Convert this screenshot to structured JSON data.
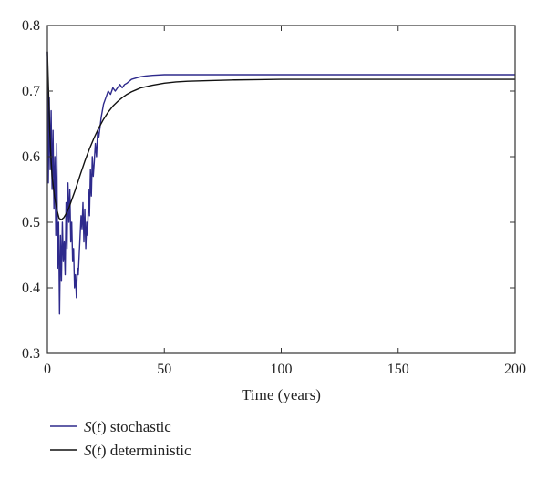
{
  "chart_data": {
    "type": "line",
    "title": "",
    "xlabel": "Time (years)",
    "ylabel": "",
    "xlim": [
      0,
      200
    ],
    "ylim": [
      0.3,
      0.8
    ],
    "xticks": [
      0,
      50,
      100,
      150,
      200
    ],
    "yticks": [
      0.3,
      0.4,
      0.5,
      0.6,
      0.7,
      0.8
    ],
    "xtick_labels": [
      "0",
      "50",
      "100",
      "150",
      "200"
    ],
    "ytick_labels": [
      "0.3",
      "0.4",
      "0.5",
      "0.6",
      "0.7",
      "0.8"
    ],
    "grid": false,
    "legend_position": "bottom-left, below plot",
    "series": [
      {
        "name": "S(t) stochastic",
        "legend_italic": "S",
        "legend_mid": "(",
        "legend_var": "t",
        "legend_rest": ") stochastic",
        "color": "#2e2a8c",
        "x": [
          0,
          0.4,
          0.8,
          1.2,
          1.6,
          2.0,
          2.4,
          2.8,
          3.2,
          3.6,
          4.0,
          4.4,
          4.8,
          5.2,
          5.6,
          6.0,
          6.4,
          6.8,
          7.2,
          7.6,
          8.0,
          8.4,
          8.8,
          9.2,
          9.6,
          10.0,
          10.4,
          10.8,
          11.2,
          11.6,
          12.0,
          12.4,
          12.8,
          13.2,
          13.6,
          14.0,
          14.4,
          14.8,
          15.2,
          15.6,
          16.0,
          16.4,
          16.8,
          17.2,
          17.6,
          18.0,
          18.4,
          18.8,
          19.2,
          19.6,
          20.0,
          20.5,
          21.0,
          21.5,
          22.0,
          23.0,
          24.0,
          25.0,
          26.0,
          27.0,
          28.0,
          29.0,
          30.0,
          31.0,
          32.0,
          33.0,
          34.0,
          35.0,
          36.0,
          38.0,
          40.0,
          42.0,
          45.0,
          50.0,
          60.0,
          80.0,
          100.0,
          150.0,
          200.0
        ],
        "y": [
          0.76,
          0.56,
          0.69,
          0.58,
          0.67,
          0.55,
          0.64,
          0.52,
          0.6,
          0.48,
          0.62,
          0.43,
          0.5,
          0.36,
          0.48,
          0.41,
          0.5,
          0.44,
          0.47,
          0.42,
          0.53,
          0.46,
          0.56,
          0.5,
          0.55,
          0.47,
          0.5,
          0.44,
          0.46,
          0.4,
          0.42,
          0.385,
          0.43,
          0.42,
          0.45,
          0.48,
          0.51,
          0.49,
          0.53,
          0.47,
          0.52,
          0.46,
          0.5,
          0.48,
          0.55,
          0.51,
          0.58,
          0.54,
          0.6,
          0.57,
          0.59,
          0.62,
          0.6,
          0.64,
          0.63,
          0.66,
          0.68,
          0.69,
          0.7,
          0.695,
          0.705,
          0.7,
          0.705,
          0.71,
          0.705,
          0.71,
          0.712,
          0.715,
          0.718,
          0.72,
          0.722,
          0.723,
          0.724,
          0.725,
          0.725,
          0.725,
          0.725,
          0.725,
          0.725
        ]
      },
      {
        "name": "S(t) deterministic",
        "legend_italic": "S",
        "legend_mid": "(",
        "legend_var": "t",
        "legend_rest": ") deterministic",
        "color": "#111111",
        "x": [
          0,
          0.5,
          1,
          1.5,
          2,
          3,
          4,
          5,
          6,
          7,
          8,
          9,
          10,
          12,
          14,
          16,
          18,
          20,
          22,
          24,
          26,
          28,
          30,
          32,
          34,
          36,
          38,
          40,
          45,
          50,
          55,
          60,
          70,
          80,
          90,
          100,
          120,
          150,
          200
        ],
        "y": [
          0.76,
          0.7,
          0.64,
          0.6,
          0.57,
          0.54,
          0.52,
          0.506,
          0.504,
          0.507,
          0.513,
          0.52,
          0.53,
          0.55,
          0.572,
          0.593,
          0.612,
          0.629,
          0.644,
          0.657,
          0.668,
          0.677,
          0.684,
          0.69,
          0.695,
          0.699,
          0.702,
          0.705,
          0.709,
          0.712,
          0.714,
          0.715,
          0.716,
          0.717,
          0.7175,
          0.718,
          0.718,
          0.718,
          0.718
        ]
      }
    ]
  }
}
